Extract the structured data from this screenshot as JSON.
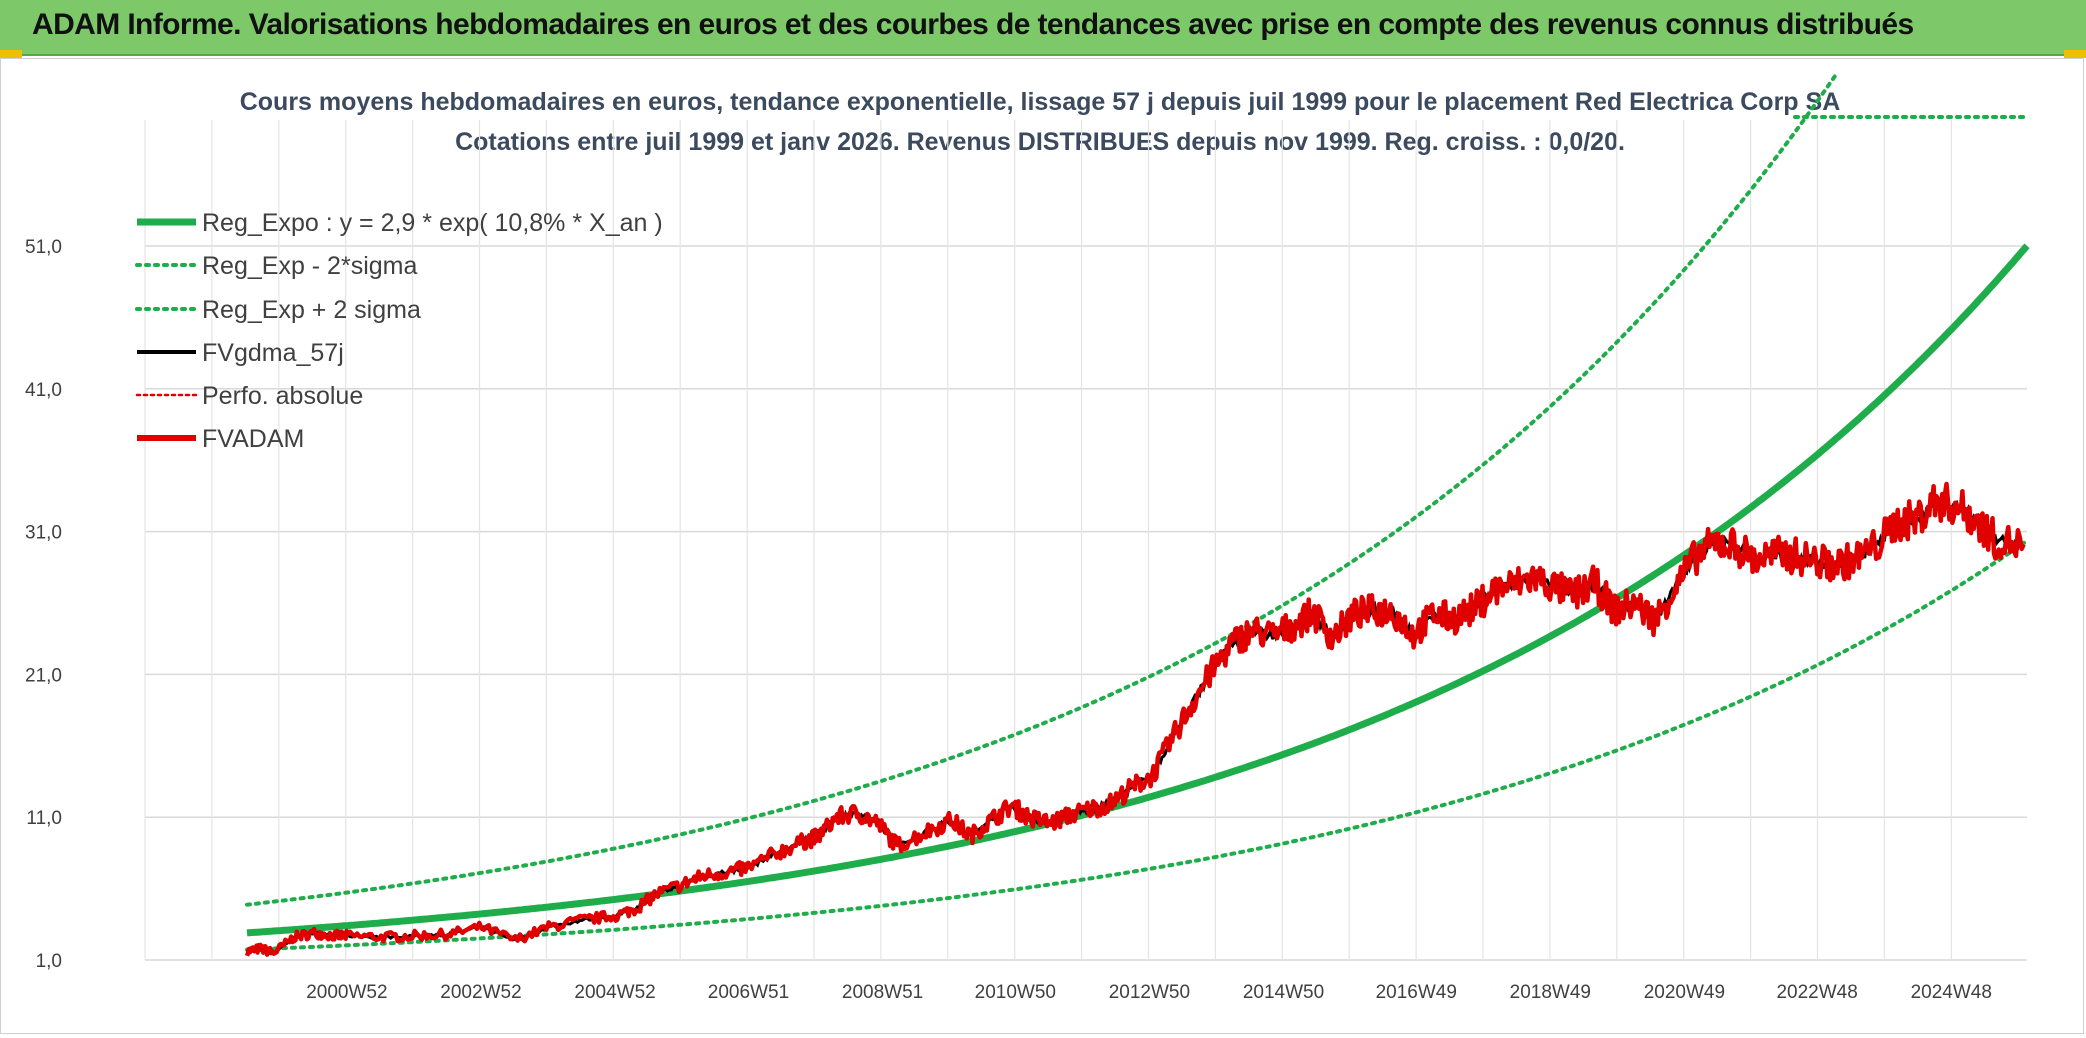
{
  "header": {
    "title": "ADAM Informe. Valorisations hebdomadaires en euros et des courbes de tendances avec prise en compte des revenus connus distribués"
  },
  "chart_data": {
    "type": "line",
    "title_line1": "Cours moyens hebdomadaires en euros, tendance exponentielle, lissage 57 j depuis juil 1999 pour le placement Red Electrica Corp SA",
    "title_line2": "Cotations entre juil 1999 et janv 2026. Revenus DISTRIBUES depuis nov 1999. Reg. croiss. : 0,0/20.",
    "ylim": [
      1,
      57
    ],
    "yticks": [
      "1,0",
      "11,0",
      "21,0",
      "31,0",
      "41,0",
      "51,0"
    ],
    "ytick_values": [
      1,
      11,
      21,
      31,
      41,
      51
    ],
    "xticks": [
      "2000W52",
      "2002W52",
      "2004W52",
      "2006W51",
      "2008W51",
      "2010W50",
      "2012W50",
      "2014W50",
      "2016W49",
      "2018W49",
      "2020W49",
      "2022W48",
      "2024W48"
    ],
    "xtick_years": [
      2000.99,
      2002.99,
      2004.99,
      2006.98,
      2008.98,
      2010.96,
      2012.96,
      2014.96,
      2016.94,
      2018.94,
      2020.94,
      2022.92,
      2024.92
    ],
    "xrange_years": [
      1999.5,
      2026.05
    ],
    "grid": true,
    "legend_position": "top-left",
    "colors": {
      "reg_expo": "#1fad4b",
      "sigma": "#1fad4b",
      "fvgdma": "#000000",
      "perfo": "#e00000",
      "fvadam": "#e00000",
      "grid": "#d9d9d9",
      "title_bar": "#7dc96a"
    },
    "regression": {
      "a": 2.9,
      "rate": 0.108,
      "start_year": 1999.5,
      "sigma_factor_low": 0.595,
      "sigma_factor_high": 1.68
    },
    "series": [
      {
        "name": "Reg_Expo : y = 2,9 * exp( 10,8% *  X_an )",
        "style": "solid-thick",
        "color": "#1fad4b"
      },
      {
        "name": "Reg_Exp - 2*sigma",
        "style": "dotted",
        "color": "#1fad4b"
      },
      {
        "name": "Reg_Exp + 2 sigma",
        "style": "dotted",
        "color": "#1fad4b"
      },
      {
        "name": "FVgdma_57j",
        "style": "solid",
        "color": "#000000"
      },
      {
        "name": "Perfo. absolue",
        "style": "dotted-thin",
        "color": "#e00000"
      },
      {
        "name": "FVADAM",
        "style": "solid-thick",
        "color": "#e00000",
        "x": [
          1999.5,
          1999.7,
          1999.9,
          2000.2,
          2000.5,
          2000.8,
          2001.0,
          2001.5,
          2002.0,
          2002.5,
          2003.0,
          2003.5,
          2004.0,
          2004.5,
          2005.0,
          2005.3,
          2005.6,
          2006.0,
          2006.3,
          2006.7,
          2007.0,
          2007.4,
          2007.8,
          2008.0,
          2008.3,
          2008.6,
          2008.9,
          2009.2,
          2009.6,
          2010.0,
          2010.3,
          2010.6,
          2010.9,
          2011.2,
          2011.5,
          2011.8,
          2012.1,
          2012.4,
          2012.7,
          2013.0,
          2013.3,
          2013.6,
          2013.9,
          2014.2,
          2014.5,
          2014.8,
          2015.1,
          2015.4,
          2015.7,
          2016.0,
          2016.3,
          2016.6,
          2016.9,
          2017.2,
          2017.5,
          2017.8,
          2018.1,
          2018.4,
          2018.7,
          2019.0,
          2019.3,
          2019.6,
          2019.9,
          2020.2,
          2020.5,
          2020.8,
          2021.1,
          2021.4,
          2021.7,
          2022.0,
          2022.3,
          2022.6,
          2022.9,
          2023.2,
          2023.5,
          2023.8,
          2024.1,
          2024.4,
          2024.7,
          2025.0,
          2025.3,
          2025.6,
          2026.0
        ],
        "y": [
          1.6,
          1.8,
          1.5,
          2.6,
          2.9,
          2.7,
          2.7,
          2.6,
          2.7,
          2.8,
          3.3,
          2.4,
          3.3,
          3.8,
          4.1,
          4.6,
          5.6,
          6.3,
          6.9,
          7.2,
          7.5,
          8.5,
          9.3,
          9.6,
          11.0,
          11.3,
          10.6,
          9.0,
          9.9,
          10.8,
          9.7,
          10.8,
          11.8,
          10.9,
          10.6,
          11.2,
          11.6,
          12.0,
          13.1,
          13.9,
          16.5,
          19.0,
          21.3,
          23.2,
          24.1,
          23.7,
          24.4,
          25.3,
          23.6,
          25.2,
          25.5,
          25.4,
          23.8,
          25.2,
          24.9,
          25.6,
          26.9,
          27.3,
          27.8,
          27.1,
          26.6,
          27.4,
          25.5,
          26.0,
          24.8,
          27.1,
          29.2,
          30.3,
          30.0,
          29.0,
          29.4,
          29.3,
          28.9,
          28.7,
          29.1,
          30.0,
          31.6,
          31.9,
          33.2,
          32.8,
          31.8,
          30.3,
          30.1
        ]
      }
    ]
  }
}
